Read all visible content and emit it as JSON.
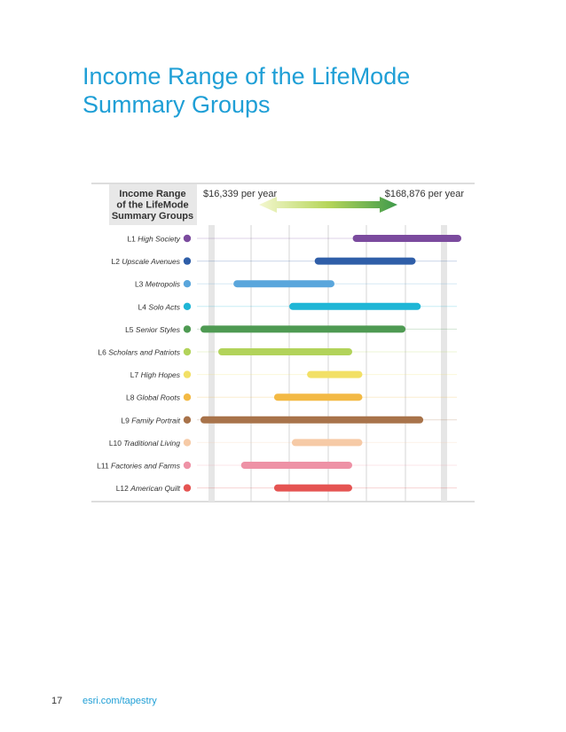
{
  "page": {
    "title_line1": "Income Range of the LifeMode",
    "title_line2": "Summary Groups",
    "page_number": "17",
    "footer_url": "esri.com/tapestry"
  },
  "chart_data": {
    "type": "bar",
    "orientation": "horizontal-range",
    "header_box": [
      "Income Range",
      "of the LifeMode",
      "Summary Groups"
    ],
    "min_label": "$16,339 per year",
    "max_label": "$168,876 per year",
    "x_range": [
      0,
      1
    ],
    "grid": true,
    "categories": [
      "L1 High Society",
      "L2 Upscale Avenues",
      "L3 Metropolis",
      "L4 Solo Acts",
      "L5 Senior Styles",
      "L6 Scholars and Patriots",
      "L7 High Hopes",
      "L8 Global Roots",
      "L9 Family Portrait",
      "L10 Traditional Living",
      "L11 Factories and Farms",
      "L12 American Quilt"
    ],
    "ranges": [
      [
        0.6,
        1.0
      ],
      [
        0.45,
        0.82
      ],
      [
        0.13,
        0.5
      ],
      [
        0.35,
        0.84
      ],
      [
        0.0,
        0.78
      ],
      [
        0.07,
        0.57
      ],
      [
        0.42,
        0.61
      ],
      [
        0.29,
        0.61
      ],
      [
        0.0,
        0.85
      ],
      [
        0.36,
        0.61
      ],
      [
        0.16,
        0.57
      ],
      [
        0.29,
        0.57
      ]
    ],
    "colors": [
      "#7b4b9e",
      "#2f5ea8",
      "#5aa6dc",
      "#1fb6d6",
      "#4e9a52",
      "#b2d35a",
      "#f2e066",
      "#f3b944",
      "#a8734a",
      "#f6caa6",
      "#ee92a6",
      "#e55452"
    ]
  }
}
